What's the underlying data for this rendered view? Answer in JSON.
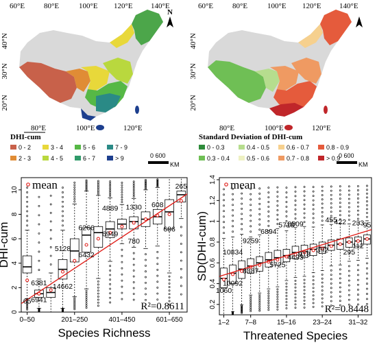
{
  "maps": [
    {
      "top_lon_labels": [
        "60°E",
        "80°E",
        "100°E",
        "120°E",
        "140°E"
      ],
      "bottom_lon_labels": [
        "80°E",
        "100°E",
        "120°E"
      ],
      "lat_labels": [
        "40°N",
        "30°N",
        "20°N"
      ],
      "north": "N",
      "legend_title": "DHI-cum",
      "legend_items": [
        {
          "label": "0 - 2",
          "color": "#c8614a"
        },
        {
          "label": "3 - 4",
          "color": "#e8d83a"
        },
        {
          "label": "5 - 6",
          "color": "#56b846"
        },
        {
          "label": "7 - 9",
          "color": "#2a8a86"
        },
        {
          "label": "2 - 3",
          "color": "#e08c35"
        },
        {
          "label": "4 - 5",
          "color": "#b9d83e"
        },
        {
          "label": "6 - 7",
          "color": "#2f9a6a"
        },
        {
          "label": "> 9",
          "color": "#1d3f8e"
        }
      ],
      "scale_label": "0    600",
      "scale_unit": "KM"
    },
    {
      "top_lon_labels": [
        "60°E",
        "80°E",
        "100°E",
        "120°E",
        "140°E"
      ],
      "bottom_lon_labels": [
        "80°E",
        "100°E",
        "120°E"
      ],
      "lat_labels": [
        "40°N",
        "30°N",
        "20°N"
      ],
      "north": "N",
      "legend_title": "Standard Deviation of DHI-cum",
      "legend_items": [
        {
          "label": "0 - 0.3",
          "color": "#2e8b3a"
        },
        {
          "label": "0.4 - 0.5",
          "color": "#b6dd8e"
        },
        {
          "label": "0.6 - 0.7",
          "color": "#f6d08e"
        },
        {
          "label": "0.8 - 0.9",
          "color": "#e55b3c"
        },
        {
          "label": "0.3 - 0.4",
          "color": "#6fbf55"
        },
        {
          "label": "0.5 - 0.6",
          "color": "#eef1c2"
        },
        {
          "label": "0.7 - 0.8",
          "color": "#ef9a62"
        },
        {
          "label": "> 0.9",
          "color": "#c0262a"
        }
      ],
      "scale_label": "0    600",
      "scale_unit": "KM"
    }
  ],
  "chart_data": [
    {
      "type": "box",
      "xlabel": "Species Richness",
      "ylabel": "DHI-cum",
      "ylim": [
        0,
        11
      ],
      "yticks": [
        0,
        2,
        4,
        6,
        8,
        10
      ],
      "xtick_labels": [
        "0–50",
        "201–250",
        "401–450",
        "601–650"
      ],
      "xtick_positions": [
        0,
        4,
        8,
        12
      ],
      "legend": "mean",
      "annotation": "R²=0.8611",
      "boxes": [
        {
          "x": 0,
          "q1": 3.2,
          "med": 3.7,
          "q3": 4.6,
          "mean": 2.6
        },
        {
          "x": 1,
          "q1": 1.2,
          "med": 1.5,
          "q3": 1.8,
          "mean": 1.5
        },
        {
          "x": 2,
          "q1": 1.2,
          "med": 1.6,
          "q3": 2.0,
          "mean": 1.8
        },
        {
          "x": 3,
          "q1": 2.7,
          "med": 3.5,
          "q3": 4.3,
          "mean": 3.3
        },
        {
          "x": 4,
          "q1": 4.1,
          "med": 5.0,
          "q3": 6.0,
          "mean": 4.2
        },
        {
          "x": 5,
          "q1": 4.9,
          "med": 6.3,
          "q3": 6.9,
          "mean": 5.5
        },
        {
          "x": 6,
          "q1": 5.3,
          "med": 6.5,
          "q3": 7.0,
          "mean": 6.0
        },
        {
          "x": 7,
          "q1": 6.1,
          "med": 6.8,
          "q3": 7.4,
          "mean": 6.5
        },
        {
          "x": 8,
          "q1": 6.8,
          "med": 7.2,
          "q3": 7.6,
          "mean": 7.0
        },
        {
          "x": 9,
          "q1": 6.8,
          "med": 7.4,
          "q3": 7.8,
          "mean": 7.3
        },
        {
          "x": 10,
          "q1": 7.0,
          "med": 7.6,
          "q3": 8.2,
          "mean": 7.6
        },
        {
          "x": 11,
          "q1": 7.2,
          "med": 7.8,
          "q3": 8.4,
          "mean": 7.9
        },
        {
          "x": 12,
          "q1": 6.8,
          "med": 8.2,
          "q3": 9.2,
          "mean": 8.0
        },
        {
          "x": 13,
          "q1": 9.0,
          "med": 9.6,
          "q3": 9.9,
          "mean": 9.1
        }
      ],
      "counts": [
        {
          "x": 0,
          "y": 0.7,
          "text": "65"
        },
        {
          "x": 1,
          "y": 2.2,
          "text": "6381"
        },
        {
          "x": 1,
          "y": 0.8,
          "text": "6941"
        },
        {
          "x": 3,
          "y": 5.0,
          "text": "5128"
        },
        {
          "x": 3,
          "y": 1.9,
          "text": "14662"
        },
        {
          "x": 5,
          "y": 6.7,
          "text": "6266"
        },
        {
          "x": 5,
          "y": 4.5,
          "text": "6432"
        },
        {
          "x": 7,
          "y": 8.3,
          "text": "4889"
        },
        {
          "x": 7,
          "y": 6.2,
          "text": "6949"
        },
        {
          "x": 9,
          "y": 8.4,
          "text": "1330"
        },
        {
          "x": 9,
          "y": 5.6,
          "text": "780"
        },
        {
          "x": 11,
          "y": 8.6,
          "text": "608"
        },
        {
          "x": 12,
          "y": 6.6,
          "text": "686"
        },
        {
          "x": 13,
          "y": 10.1,
          "text": "265"
        }
      ],
      "fit_line": [
        [
          -0.5,
          0.7
        ],
        [
          14.5,
          10.3
        ]
      ]
    },
    {
      "type": "box",
      "xlabel": "Threatened Species",
      "ylabel": "SD(DHI-cum)",
      "ylim": [
        0.1,
        1.42
      ],
      "yticks": [
        0.2,
        0.4,
        0.6,
        0.8,
        1.0,
        1.2,
        1.4
      ],
      "xtick_labels": [
        "1–2",
        "7–8",
        "15–16",
        "23–24",
        "31–32"
      ],
      "xtick_positions": [
        0,
        3,
        7,
        11,
        15
      ],
      "legend": "mean",
      "annotation": "R²=0.8448",
      "boxes": [
        {
          "x": 0,
          "q1": 0.36,
          "med": 0.45,
          "q3": 0.55,
          "mean": 0.44
        },
        {
          "x": 1,
          "q1": 0.4,
          "med": 0.5,
          "q3": 0.58,
          "mean": 0.49
        },
        {
          "x": 2,
          "q1": 0.45,
          "med": 0.54,
          "q3": 0.62,
          "mean": 0.52
        },
        {
          "x": 3,
          "q1": 0.5,
          "med": 0.57,
          "q3": 0.64,
          "mean": 0.56
        },
        {
          "x": 4,
          "q1": 0.52,
          "med": 0.6,
          "q3": 0.66,
          "mean": 0.58
        },
        {
          "x": 5,
          "q1": 0.56,
          "med": 0.63,
          "q3": 0.7,
          "mean": 0.61
        },
        {
          "x": 6,
          "q1": 0.58,
          "med": 0.65,
          "q3": 0.72,
          "mean": 0.63
        },
        {
          "x": 7,
          "q1": 0.61,
          "med": 0.67,
          "q3": 0.73,
          "mean": 0.66
        },
        {
          "x": 8,
          "q1": 0.64,
          "med": 0.7,
          "q3": 0.76,
          "mean": 0.68
        },
        {
          "x": 9,
          "q1": 0.65,
          "med": 0.71,
          "q3": 0.77,
          "mean": 0.7
        },
        {
          "x": 10,
          "q1": 0.67,
          "med": 0.73,
          "q3": 0.78,
          "mean": 0.72
        },
        {
          "x": 11,
          "q1": 0.69,
          "med": 0.75,
          "q3": 0.8,
          "mean": 0.74
        },
        {
          "x": 12,
          "q1": 0.72,
          "med": 0.77,
          "q3": 0.82,
          "mean": 0.76
        },
        {
          "x": 13,
          "q1": 0.73,
          "med": 0.78,
          "q3": 0.83,
          "mean": 0.78
        },
        {
          "x": 14,
          "q1": 0.75,
          "med": 0.8,
          "q3": 0.84,
          "mean": 0.8
        },
        {
          "x": 15,
          "q1": 0.76,
          "med": 0.81,
          "q3": 0.85,
          "mean": 0.81
        },
        {
          "x": 16,
          "q1": 0.78,
          "med": 0.83,
          "q3": 0.87,
          "mean": 0.83
        }
      ],
      "counts": [
        {
          "x": 0,
          "y": 0.31,
          "text": "1060"
        },
        {
          "x": 1,
          "y": 0.68,
          "text": "10834"
        },
        {
          "x": 1,
          "y": 0.38,
          "text": "10092"
        },
        {
          "x": 3,
          "y": 0.79,
          "text": "9259"
        },
        {
          "x": 3,
          "y": 0.5,
          "text": "8387"
        },
        {
          "x": 5,
          "y": 0.88,
          "text": "6894"
        },
        {
          "x": 6,
          "y": 0.56,
          "text": "5725"
        },
        {
          "x": 7,
          "y": 0.94,
          "text": "5718"
        },
        {
          "x": 8,
          "y": 0.95,
          "text": "8509"
        },
        {
          "x": 8,
          "y": 0.63,
          "text": "4493"
        },
        {
          "x": 9,
          "y": 0.66,
          "text": "918"
        },
        {
          "x": 11,
          "y": 0.7,
          "text": "392"
        },
        {
          "x": 12,
          "y": 0.99,
          "text": "455"
        },
        {
          "x": 13,
          "y": 0.97,
          "text": "422"
        },
        {
          "x": 14,
          "y": 0.68,
          "text": "295"
        },
        {
          "x": 15,
          "y": 0.96,
          "text": "233"
        },
        {
          "x": 15,
          "y": 0.74,
          "text": "112"
        },
        {
          "x": 16,
          "y": 0.94,
          "text": "95"
        }
      ],
      "fit_line": [
        [
          -0.5,
          0.47
        ],
        [
          16.5,
          0.92
        ]
      ]
    }
  ]
}
